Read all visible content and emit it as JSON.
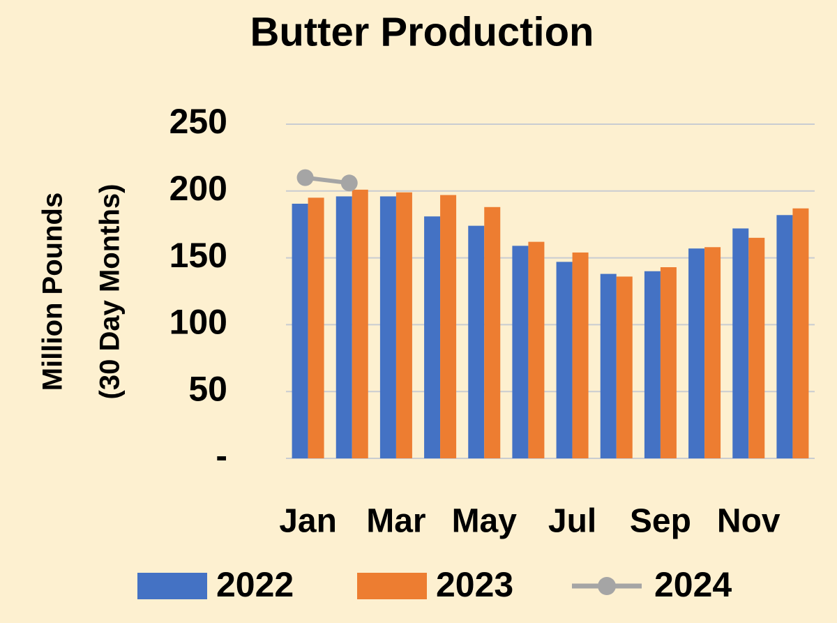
{
  "chart_data": {
    "type": "bar",
    "title": "Butter Production",
    "ylabel": [
      "Million Pounds",
      "(30 Day Months)"
    ],
    "categories": [
      "Jan",
      null,
      "Mar",
      null,
      "May",
      null,
      "Jul",
      null,
      "Sep",
      null,
      "Nov",
      null
    ],
    "series": [
      {
        "name": "2022",
        "color": "#4472c4",
        "values": [
          190.5,
          196,
          196,
          181,
          174,
          159,
          147,
          138,
          140,
          157,
          172,
          182
        ]
      },
      {
        "name": "2023",
        "color": "#ed7d31",
        "values": [
          195,
          201,
          199,
          197,
          188,
          162,
          154,
          136,
          143,
          158,
          165,
          187
        ]
      },
      {
        "name": "2024",
        "color": "#a5a5a5",
        "type": "line",
        "values": [
          210,
          206,
          null,
          null,
          null,
          null,
          null,
          null,
          null,
          null,
          null,
          null
        ]
      }
    ],
    "ylim": [
      0,
      250
    ],
    "yticks": [
      {
        "value": 0,
        "label": "-"
      },
      50,
      100,
      150,
      200,
      250
    ],
    "grid": true
  }
}
